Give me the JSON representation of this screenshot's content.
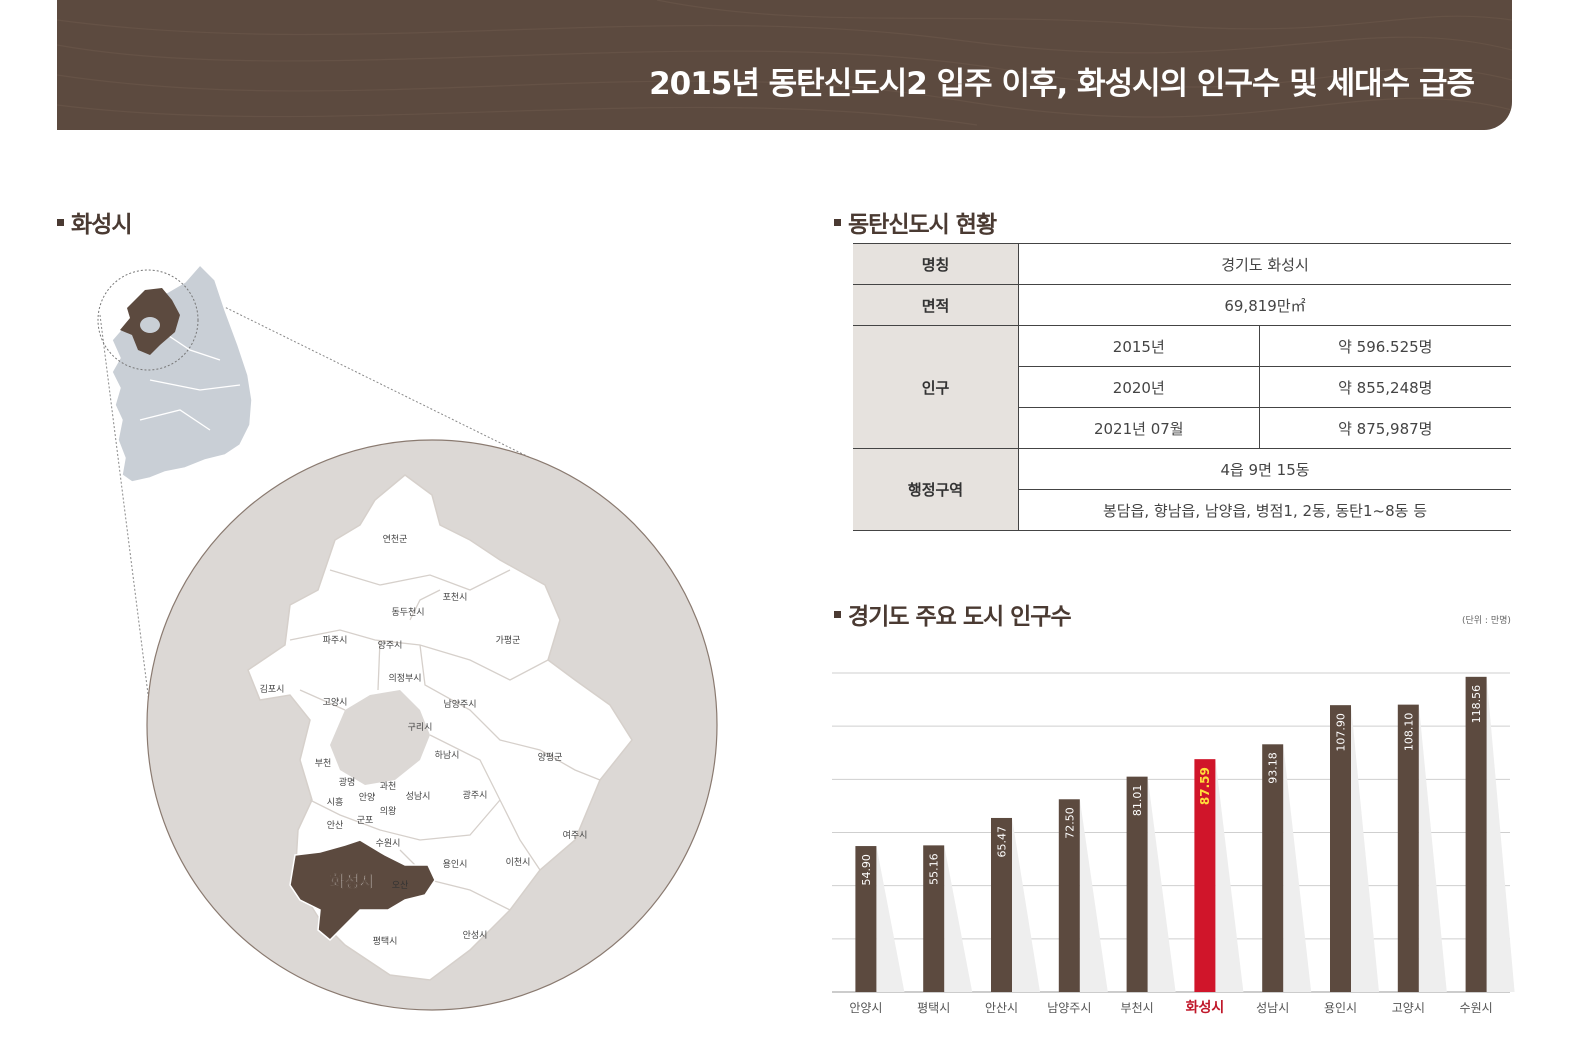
{
  "banner": {
    "title": "2015년 동탄신도시2 입주 이후, 화성시의 인구수 및 세대수 급증"
  },
  "sections": {
    "map": "화성시",
    "status": "동탄신도시 현황",
    "population": "경기도 주요 도시 인구수"
  },
  "table": {
    "name_label": "명칭",
    "name_value": "경기도 화성시",
    "area_label": "면적",
    "area_value": "69,819만㎡",
    "pop_label": "인구",
    "pop_rows": [
      {
        "year": "2015년",
        "value": "약 596.525명"
      },
      {
        "year": "2020년",
        "value": "약 855,248명"
      },
      {
        "year": "2021년 07월",
        "value": "약 875,987명"
      }
    ],
    "admin_label": "행정구역",
    "admin_value1": "4읍 9면 15동",
    "admin_value2": "봉담읍, 향남읍, 남양읍, 병점1, 2동, 동탄1~8동 등"
  },
  "map": {
    "highlight": "화성시",
    "labels": [
      "연천군",
      "포천시",
      "동두천시",
      "파주시",
      "양주시",
      "가평군",
      "의정부시",
      "김포시",
      "고양시",
      "남양주시",
      "구리시",
      "하남시",
      "양평군",
      "부천",
      "광명",
      "과천",
      "시흥",
      "안양",
      "성남시",
      "의왕",
      "광주시",
      "안산",
      "군포",
      "수원시",
      "여주시",
      "이천시",
      "용인시",
      "오산",
      "평택시",
      "안성시"
    ]
  },
  "colors": {
    "brown": "#5c4a3f",
    "highlight": "#d0152a",
    "map_gray": "#c9cfd6",
    "circle_bg": "#dcd8d5"
  },
  "chart_data": {
    "type": "bar",
    "unit": "(단위 : 만명)",
    "categories": [
      "안양시",
      "평택시",
      "안산시",
      "남양주시",
      "부천시",
      "화성시",
      "성남시",
      "용인시",
      "고양시",
      "수원시"
    ],
    "values": [
      54.9,
      55.16,
      65.47,
      72.5,
      81.01,
      87.59,
      93.18,
      107.9,
      108.1,
      118.56
    ],
    "value_labels": [
      "54.90",
      "55.16",
      "65.47",
      "72.50",
      "81.01",
      "87.59",
      "93.18",
      "107.90",
      "108.10",
      "118.56"
    ],
    "highlight_index": 5,
    "ylim": [
      0,
      120
    ],
    "grid": true
  }
}
